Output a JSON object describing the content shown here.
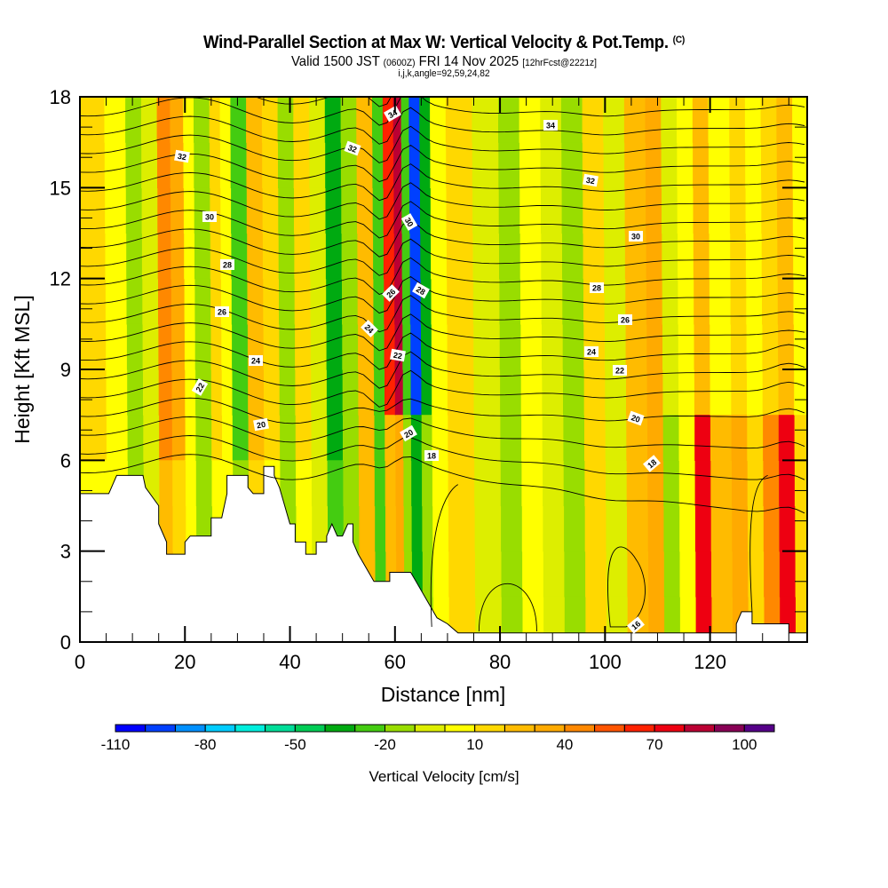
{
  "header": {
    "title": "Wind-Parallel Section at Max W: Vertical Velocity & Pot.Temp.",
    "title_mark": "(C)",
    "subtitle_a": "Valid 1500 JST",
    "subtitle_b": "(0600Z)",
    "subtitle_c": "FRI 14 Nov 2025",
    "subtitle_d": "[12hrFcst@2221z]",
    "subsubtitle": "i,j,k,angle=92,59,24,82"
  },
  "chart_data": {
    "type": "heatmap",
    "title": "Wind-Parallel Section at Max W: Vertical Velocity & Pot.Temp.",
    "xlabel": "Distance [nm]",
    "ylabel": "Height [Kft MSL]",
    "xlim": [
      0,
      138.5
    ],
    "ylim": [
      0,
      18
    ],
    "xticks": [
      0,
      20,
      40,
      60,
      80,
      100,
      120
    ],
    "yticks": [
      0,
      3,
      6,
      9,
      12,
      15,
      18
    ],
    "x_minor_step": 5,
    "y_minor_step": 1,
    "colorbar": {
      "title": "Vertical Velocity [cm/s]",
      "levels": [
        -110,
        -100,
        -90,
        -80,
        -70,
        -60,
        -50,
        -40,
        -30,
        -20,
        -10,
        0,
        10,
        20,
        30,
        40,
        50,
        60,
        70,
        80,
        90,
        100,
        110
      ],
      "tick_labels": [
        -110,
        -80,
        -50,
        -20,
        10,
        40,
        70,
        100
      ],
      "colors": [
        "#0000ff",
        "#0040ff",
        "#0090ff",
        "#00ccff",
        "#00eedd",
        "#00dd99",
        "#00cc55",
        "#00aa11",
        "#44cc11",
        "#99dd00",
        "#ddee00",
        "#ffff00",
        "#ffd800",
        "#ffbb00",
        "#ffaa00",
        "#ff8800",
        "#ff5500",
        "#ff2200",
        "#ee0011",
        "#bb0033",
        "#880055",
        "#550088"
      ]
    },
    "w_bands": [
      {
        "x": 0,
        "w": 10
      },
      {
        "x": 5,
        "w": 0
      },
      {
        "x": 9,
        "w": -20
      },
      {
        "x": 12,
        "w": -10
      },
      {
        "x": 15,
        "w": 40
      },
      {
        "x": 17.5,
        "w": 30
      },
      {
        "x": 20,
        "w": 0
      },
      {
        "x": 22,
        "w": -20
      },
      {
        "x": 25,
        "w": 10
      },
      {
        "x": 27,
        "w": 0
      },
      {
        "x": 29,
        "w": -30
      },
      {
        "x": 32,
        "w": 20
      },
      {
        "x": 35,
        "w": 10
      },
      {
        "x": 38,
        "w": -20
      },
      {
        "x": 41,
        "w": 10
      },
      {
        "x": 44,
        "w": -10
      },
      {
        "x": 47,
        "w": -40
      },
      {
        "x": 50,
        "w": -20
      },
      {
        "x": 53,
        "w": 20
      },
      {
        "x": 56,
        "w": -30
      },
      {
        "x": 58,
        "w": 60
      },
      {
        "x": 60,
        "w": 80
      },
      {
        "x": 61.5,
        "w": -30
      },
      {
        "x": 63,
        "w": -100
      },
      {
        "x": 65,
        "w": -40
      },
      {
        "x": 67,
        "w": 0
      },
      {
        "x": 70,
        "w": 10
      },
      {
        "x": 75,
        "w": -10
      },
      {
        "x": 80,
        "w": -20
      },
      {
        "x": 84,
        "w": 0
      },
      {
        "x": 88,
        "w": -10
      },
      {
        "x": 92,
        "w": -20
      },
      {
        "x": 96,
        "w": 10
      },
      {
        "x": 100,
        "w": -10
      },
      {
        "x": 104,
        "w": 20
      },
      {
        "x": 108,
        "w": 30
      },
      {
        "x": 111,
        "w": -20
      },
      {
        "x": 114,
        "w": 0
      },
      {
        "x": 117,
        "w": 70
      },
      {
        "x": 120,
        "w": 20
      },
      {
        "x": 124,
        "w": 30
      },
      {
        "x": 127,
        "w": 10
      },
      {
        "x": 130,
        "w": 40
      },
      {
        "x": 133,
        "w": 70
      },
      {
        "x": 136,
        "w": 10
      },
      {
        "x": 138.5,
        "w": 30
      }
    ],
    "theta_contours": [
      {
        "level": 16,
        "label_at": [
          105,
          0.6
        ]
      },
      {
        "level": 18,
        "label_at": [
          68,
          6.2
        ]
      },
      {
        "level": 20,
        "label_at": [
          38,
          7.2
        ]
      },
      {
        "level": 22,
        "label_at": [
          24,
          8.5
        ]
      },
      {
        "level": 24,
        "label_at": [
          35,
          9.5
        ]
      },
      {
        "level": 26,
        "label_at": [
          28,
          11.1
        ]
      },
      {
        "level": 28,
        "label_at": [
          30,
          12.5
        ]
      },
      {
        "level": 30,
        "label_at": [
          25,
          14.4
        ]
      },
      {
        "level": 32,
        "label_at": [
          20,
          16.4
        ]
      },
      {
        "level": 34,
        "label_at": [
          59,
          17.4
        ]
      }
    ],
    "terrain_kft": [
      [
        0,
        4.9
      ],
      [
        5.5,
        4.9
      ],
      [
        7,
        5.5
      ],
      [
        12,
        5.5
      ],
      [
        12.5,
        5.1
      ],
      [
        15,
        4.5
      ],
      [
        15,
        3.9
      ],
      [
        16.5,
        3.3
      ],
      [
        16.5,
        2.9
      ],
      [
        20,
        2.9
      ],
      [
        20,
        3.3
      ],
      [
        21,
        3.5
      ],
      [
        25,
        3.5
      ],
      [
        25,
        4.1
      ],
      [
        27,
        4.1
      ],
      [
        28,
        4.9
      ],
      [
        28,
        5.5
      ],
      [
        32,
        5.5
      ],
      [
        32,
        5.1
      ],
      [
        33,
        4.9
      ],
      [
        35,
        4.9
      ],
      [
        35,
        5.8
      ],
      [
        37,
        5.8
      ],
      [
        37,
        5.5
      ],
      [
        38,
        5.1
      ],
      [
        39,
        4.5
      ],
      [
        40,
        3.9
      ],
      [
        41,
        3.9
      ],
      [
        41,
        3.3
      ],
      [
        43,
        3.3
      ],
      [
        43,
        2.9
      ],
      [
        45,
        2.9
      ],
      [
        45,
        3.3
      ],
      [
        47,
        3.3
      ],
      [
        47,
        3.5
      ],
      [
        48,
        3.9
      ],
      [
        49,
        3.5
      ],
      [
        50,
        3.5
      ],
      [
        51,
        3.9
      ],
      [
        52,
        3.9
      ],
      [
        52,
        3.3
      ],
      [
        53,
        2.9
      ],
      [
        54,
        2.6
      ],
      [
        55,
        2.3
      ],
      [
        56,
        2.0
      ],
      [
        59,
        2.0
      ],
      [
        59,
        2.3
      ],
      [
        63,
        2.3
      ],
      [
        64,
        2.0
      ],
      [
        65,
        1.7
      ],
      [
        66,
        1.4
      ],
      [
        67,
        1.1
      ],
      [
        68,
        0.8
      ],
      [
        70,
        0.6
      ],
      [
        72,
        0.3
      ],
      [
        125,
        0.3
      ],
      [
        125,
        0.6
      ],
      [
        126,
        1.0
      ],
      [
        128,
        1.0
      ],
      [
        128,
        0.6
      ],
      [
        135,
        0.6
      ],
      [
        135,
        0.3
      ],
      [
        138.5,
        0.3
      ]
    ]
  },
  "labels": {
    "contour_34_a": "34",
    "contour_34_b": "34",
    "contour_32_a": "32",
    "contour_32_b": "32",
    "contour_32_c": "32",
    "contour_30_a": "30",
    "contour_30_b": "30",
    "contour_30_c": "30",
    "contour_28_a": "28",
    "contour_28_b": "28",
    "contour_28_c": "28",
    "contour_26_a": "26",
    "contour_26_b": "26",
    "contour_26_c": "26",
    "contour_24_a": "24",
    "contour_24_b": "24",
    "contour_24_c": "24",
    "contour_22_a": "22",
    "contour_22_b": "22",
    "contour_22_c": "22",
    "contour_20_a": "20",
    "contour_20_b": "20",
    "contour_20_c": "20",
    "contour_18_a": "18",
    "contour_18_b": "18",
    "contour_16_a": "16"
  }
}
